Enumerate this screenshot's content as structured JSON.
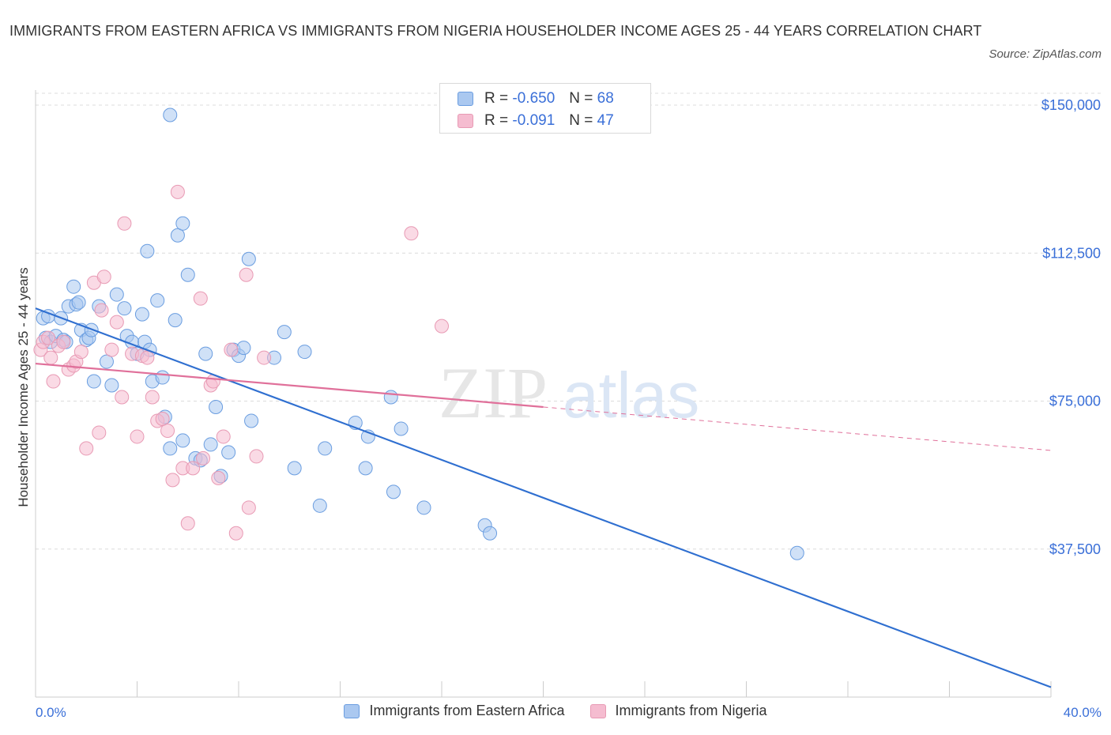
{
  "header": {
    "title": "IMMIGRANTS FROM EASTERN AFRICA VS IMMIGRANTS FROM NIGERIA HOUSEHOLDER INCOME AGES 25 - 44 YEARS CORRELATION CHART",
    "source": "Source: ZipAtlas.com"
  },
  "colors": {
    "blue_fill": "#aac8f0",
    "blue_stroke": "#6a9de0",
    "blue_line": "#2f6fd0",
    "pink_fill": "#f5bcd0",
    "pink_stroke": "#e89ab4",
    "pink_line": "#e0709a",
    "axis_text": "#3a6fd8",
    "grid": "#dcdcdc"
  },
  "legend_top": {
    "rows": [
      {
        "r_label": "R =",
        "r_value": "-0.650",
        "n_label": "N =",
        "n_value": "68"
      },
      {
        "r_label": "R =",
        "r_value": "-0.091",
        "n_label": "N =",
        "n_value": "47"
      }
    ]
  },
  "watermark": {
    "bold": "ZIP",
    "light": "atlas"
  },
  "chart_data": {
    "type": "scatter",
    "xlabel": "",
    "ylabel": "Householder Income Ages 25 - 44 years",
    "xlim": [
      0,
      40
    ],
    "ylim": [
      0,
      150000
    ],
    "x_tick_labels": [
      "0.0%",
      "40.0%"
    ],
    "y_ticks": [
      37500,
      75000,
      112500,
      150000
    ],
    "y_tick_labels": [
      "$37,500",
      "$75,000",
      "$112,500",
      "$150,000"
    ],
    "grid": "horizontal dashed",
    "legend_position": "top-center and bottom",
    "series": [
      {
        "name": "Immigrants from Eastern Africa",
        "color": "#aac8f0",
        "points": [
          [
            0.3,
            96000
          ],
          [
            0.4,
            91000
          ],
          [
            0.5,
            96500
          ],
          [
            0.6,
            90000
          ],
          [
            0.8,
            91500
          ],
          [
            1.0,
            96000
          ],
          [
            1.1,
            90500
          ],
          [
            1.2,
            90000
          ],
          [
            1.3,
            99000
          ],
          [
            1.5,
            104000
          ],
          [
            1.6,
            99500
          ],
          [
            1.7,
            100000
          ],
          [
            1.8,
            93000
          ],
          [
            2.0,
            90500
          ],
          [
            2.1,
            91000
          ],
          [
            2.2,
            93000
          ],
          [
            2.3,
            80000
          ],
          [
            2.5,
            99000
          ],
          [
            2.8,
            85000
          ],
          [
            3.0,
            79000
          ],
          [
            3.2,
            102000
          ],
          [
            3.5,
            98500
          ],
          [
            3.6,
            91500
          ],
          [
            3.8,
            90000
          ],
          [
            4.0,
            87000
          ],
          [
            4.2,
            97000
          ],
          [
            4.3,
            90000
          ],
          [
            4.5,
            88000
          ],
          [
            4.4,
            113000
          ],
          [
            4.6,
            80000
          ],
          [
            4.8,
            100500
          ],
          [
            5.0,
            81000
          ],
          [
            5.1,
            71000
          ],
          [
            5.3,
            63000
          ],
          [
            5.5,
            95500
          ],
          [
            5.6,
            117000
          ],
          [
            5.8,
            65000
          ],
          [
            6.0,
            107000
          ],
          [
            6.3,
            60500
          ],
          [
            6.5,
            60000
          ],
          [
            6.7,
            87000
          ],
          [
            6.9,
            64000
          ],
          [
            7.1,
            73500
          ],
          [
            7.3,
            56000
          ],
          [
            7.6,
            62000
          ],
          [
            7.8,
            88000
          ],
          [
            8.0,
            86500
          ],
          [
            8.2,
            88500
          ],
          [
            8.5,
            70000
          ],
          [
            8.4,
            111000
          ],
          [
            9.4,
            86000
          ],
          [
            9.8,
            92500
          ],
          [
            10.2,
            58000
          ],
          [
            10.6,
            87500
          ],
          [
            11.2,
            48500
          ],
          [
            11.4,
            63000
          ],
          [
            12.6,
            69500
          ],
          [
            13.1,
            66000
          ],
          [
            13.0,
            58000
          ],
          [
            14.0,
            76000
          ],
          [
            14.1,
            52000
          ],
          [
            14.4,
            68000
          ],
          [
            15.3,
            48000
          ],
          [
            17.7,
            43500
          ],
          [
            17.9,
            41500
          ],
          [
            30.0,
            36500
          ],
          [
            5.3,
            147500
          ],
          [
            5.8,
            120000
          ]
        ]
      },
      {
        "name": "Immigrants from Nigeria",
        "color": "#f5bcd0",
        "points": [
          [
            0.2,
            88000
          ],
          [
            0.3,
            90000
          ],
          [
            0.5,
            91000
          ],
          [
            0.6,
            86000
          ],
          [
            0.7,
            80000
          ],
          [
            0.9,
            89000
          ],
          [
            1.1,
            90000
          ],
          [
            1.3,
            83000
          ],
          [
            1.5,
            84000
          ],
          [
            1.6,
            85000
          ],
          [
            1.8,
            87500
          ],
          [
            2.0,
            63000
          ],
          [
            2.3,
            105000
          ],
          [
            2.5,
            67000
          ],
          [
            2.6,
            98000
          ],
          [
            2.7,
            106500
          ],
          [
            3.0,
            88000
          ],
          [
            3.2,
            95000
          ],
          [
            3.4,
            76000
          ],
          [
            3.5,
            120000
          ],
          [
            3.8,
            87000
          ],
          [
            4.0,
            66000
          ],
          [
            4.2,
            86500
          ],
          [
            4.4,
            86000
          ],
          [
            4.6,
            76000
          ],
          [
            4.8,
            70000
          ],
          [
            5.0,
            70500
          ],
          [
            5.2,
            67500
          ],
          [
            5.4,
            55000
          ],
          [
            5.6,
            128000
          ],
          [
            5.8,
            58000
          ],
          [
            6.0,
            44000
          ],
          [
            6.2,
            58000
          ],
          [
            6.5,
            101000
          ],
          [
            6.6,
            60500
          ],
          [
            6.9,
            79000
          ],
          [
            7.2,
            55500
          ],
          [
            7.4,
            66000
          ],
          [
            7.7,
            88000
          ],
          [
            7.9,
            41500
          ],
          [
            8.3,
            107000
          ],
          [
            8.4,
            48000
          ],
          [
            8.7,
            61000
          ],
          [
            9.0,
            86000
          ],
          [
            14.8,
            117500
          ],
          [
            16.0,
            94000
          ],
          [
            7.0,
            80000
          ]
        ]
      }
    ],
    "trend_lines": [
      {
        "series": "Immigrants from Eastern Africa",
        "x": [
          0,
          40
        ],
        "y": [
          98500,
          2500
        ],
        "style": "solid"
      },
      {
        "series": "Immigrants from Nigeria",
        "x": [
          0,
          20
        ],
        "y": [
          84500,
          73500
        ],
        "style": "solid"
      },
      {
        "series": "Immigrants from Nigeria",
        "x": [
          20,
          40
        ],
        "y": [
          73500,
          62500
        ],
        "style": "dashed"
      }
    ]
  }
}
